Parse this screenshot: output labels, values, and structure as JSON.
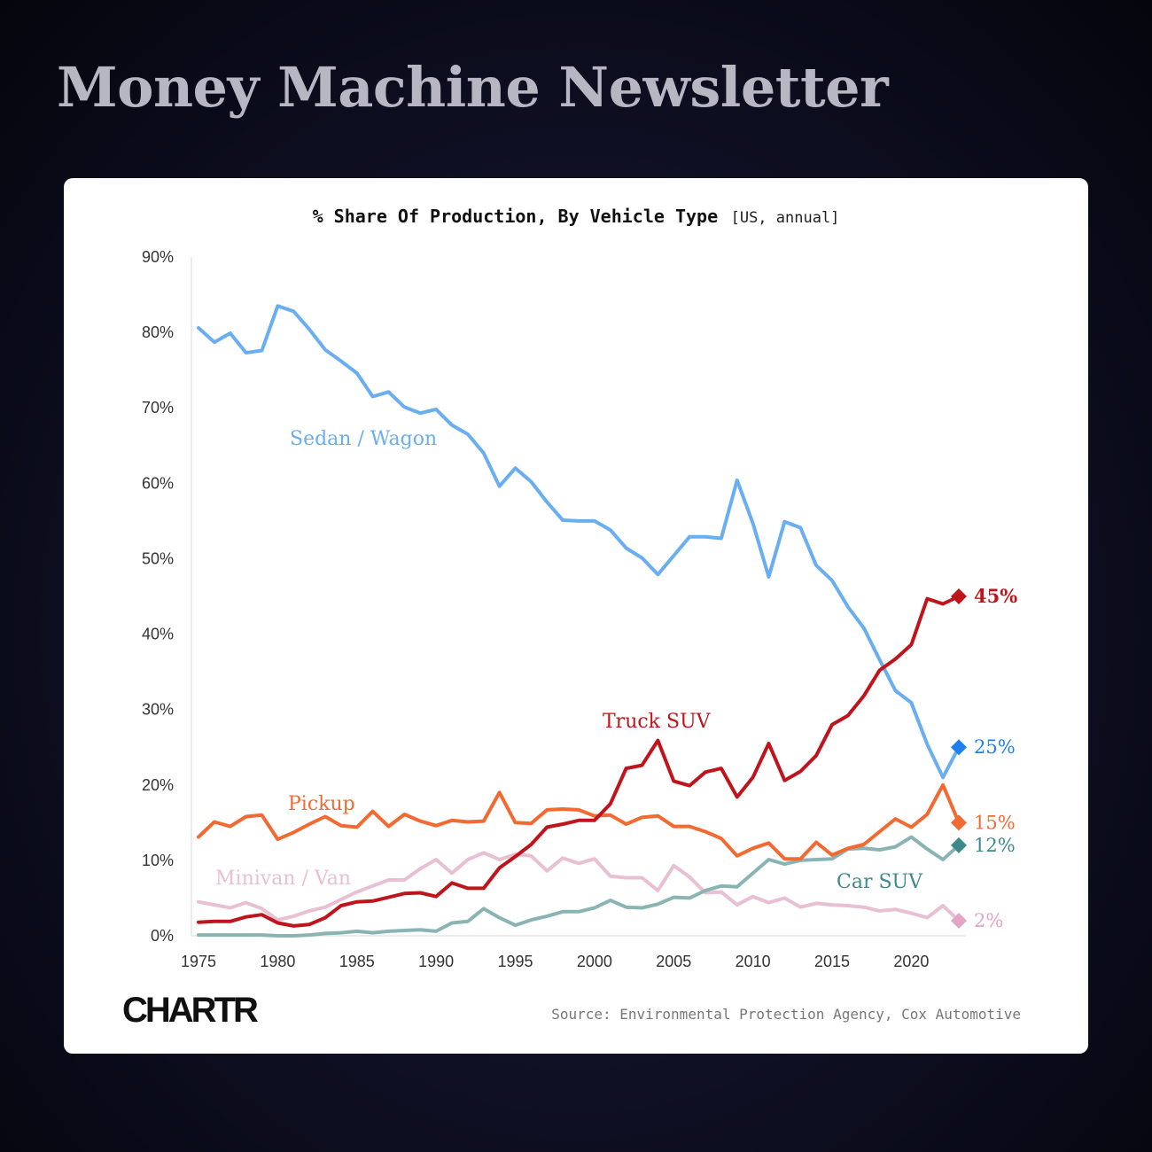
{
  "header": {
    "title": "Money Machine Newsletter"
  },
  "footer": {
    "logo": "CHARTR",
    "source": "Source: Environmental Protection Agency, Cox Automotive"
  },
  "chart_data": {
    "type": "line",
    "title": "% Share Of Production, By Vehicle Type",
    "subtitle": "[US, annual]",
    "xlabel": "",
    "ylabel": "",
    "xlim": [
      1975,
      2023
    ],
    "ylim": [
      0,
      90
    ],
    "x_ticks": [
      "1975",
      "1980",
      "1985",
      "1990",
      "1995",
      "2000",
      "2005",
      "2010",
      "2015",
      "2020"
    ],
    "y_ticks": [
      "0%",
      "10%",
      "20%",
      "30%",
      "40%",
      "50%",
      "60%",
      "70%",
      "80%",
      "90%"
    ],
    "grid": false,
    "x": [
      1975,
      1976,
      1977,
      1978,
      1979,
      1980,
      1981,
      1982,
      1983,
      1984,
      1985,
      1986,
      1987,
      1988,
      1989,
      1990,
      1991,
      1992,
      1993,
      1994,
      1995,
      1996,
      1997,
      1998,
      1999,
      2000,
      2001,
      2002,
      2003,
      2004,
      2005,
      2006,
      2007,
      2008,
      2009,
      2010,
      2011,
      2012,
      2013,
      2014,
      2015,
      2016,
      2017,
      2018,
      2019,
      2020,
      2021,
      2022,
      2023
    ],
    "series": [
      {
        "name": "Sedan / Wagon",
        "color": "#6aaef2",
        "end_color": "#1f7ff0",
        "end_label": "25%",
        "values": [
          80.6,
          78.7,
          79.9,
          77.3,
          77.6,
          83.5,
          82.8,
          80.4,
          77.7,
          76.2,
          74.6,
          71.5,
          72.1,
          70.1,
          69.3,
          69.8,
          67.7,
          66.5,
          64.0,
          59.6,
          62.0,
          60.2,
          57.5,
          55.1,
          55.0,
          55.0,
          53.8,
          51.4,
          50.1,
          47.9,
          50.4,
          52.9,
          52.9,
          52.7,
          60.4,
          54.7,
          47.6,
          54.9,
          54.1,
          49.1,
          47.1,
          43.6,
          40.8,
          36.6,
          32.5,
          30.9,
          25.4,
          21.0,
          25.0
        ]
      },
      {
        "name": "Truck SUV",
        "color": "#c0141c",
        "end_color": "#c0141c",
        "end_label": "45%",
        "values": [
          1.8,
          1.9,
          1.9,
          2.5,
          2.8,
          1.7,
          1.3,
          1.5,
          2.4,
          4.0,
          4.5,
          4.6,
          5.1,
          5.6,
          5.7,
          5.2,
          7.0,
          6.3,
          6.3,
          9.0,
          10.5,
          12.1,
          14.4,
          14.8,
          15.3,
          15.3,
          17.5,
          22.2,
          22.6,
          25.9,
          20.5,
          19.9,
          21.7,
          22.2,
          18.4,
          21.0,
          25.5,
          20.6,
          21.8,
          23.9,
          28.0,
          29.2,
          31.8,
          35.2,
          36.7,
          38.6,
          44.7,
          44.0,
          45.0
        ]
      },
      {
        "name": "Pickup",
        "color": "#f26a32",
        "end_color": "#f26a32",
        "end_label": "15%",
        "values": [
          13.1,
          15.1,
          14.5,
          15.8,
          16.0,
          12.8,
          13.7,
          14.8,
          15.8,
          14.6,
          14.4,
          16.5,
          14.5,
          16.1,
          15.2,
          14.6,
          15.3,
          15.1,
          15.2,
          19.0,
          15.0,
          14.9,
          16.7,
          16.8,
          16.7,
          15.9,
          16.0,
          14.8,
          15.7,
          15.9,
          14.5,
          14.5,
          13.8,
          12.9,
          10.6,
          11.6,
          12.3,
          10.2,
          10.2,
          12.4,
          10.7,
          11.6,
          12.1,
          13.8,
          15.5,
          14.4,
          16.1,
          20.0,
          15.0
        ]
      },
      {
        "name": "Minivan / Van",
        "color": "#e8bfd3",
        "end_color": "#e2a5c6",
        "end_label": "2%",
        "values": [
          4.5,
          4.1,
          3.7,
          4.4,
          3.6,
          2.1,
          2.6,
          3.3,
          3.8,
          4.8,
          5.8,
          6.6,
          7.4,
          7.4,
          8.9,
          10.1,
          8.3,
          10.1,
          11.0,
          10.1,
          10.8,
          10.6,
          8.6,
          10.3,
          9.6,
          10.2,
          7.9,
          7.7,
          7.7,
          6.0,
          9.3,
          7.8,
          5.7,
          5.8,
          4.1,
          5.2,
          4.4,
          5.0,
          3.8,
          4.3,
          4.1,
          4.0,
          3.8,
          3.3,
          3.5,
          3.0,
          2.4,
          4.0,
          2.0
        ]
      },
      {
        "name": "Car SUV",
        "color": "#8ab4b4",
        "end_color": "#3e8a8a",
        "end_label": "12%",
        "label_color": "#3e8a8a",
        "values": [
          0.1,
          0.1,
          0.1,
          0.1,
          0.1,
          0.0,
          0.0,
          0.1,
          0.3,
          0.4,
          0.6,
          0.4,
          0.6,
          0.7,
          0.8,
          0.6,
          1.7,
          1.9,
          3.6,
          2.4,
          1.4,
          2.1,
          2.6,
          3.2,
          3.2,
          3.7,
          4.7,
          3.8,
          3.7,
          4.2,
          5.1,
          5.0,
          6.0,
          6.6,
          6.5,
          8.3,
          10.1,
          9.5,
          10.0,
          10.1,
          10.2,
          11.5,
          11.6,
          11.4,
          11.8,
          13.1,
          11.5,
          10.1,
          12.0
        ]
      }
    ]
  }
}
